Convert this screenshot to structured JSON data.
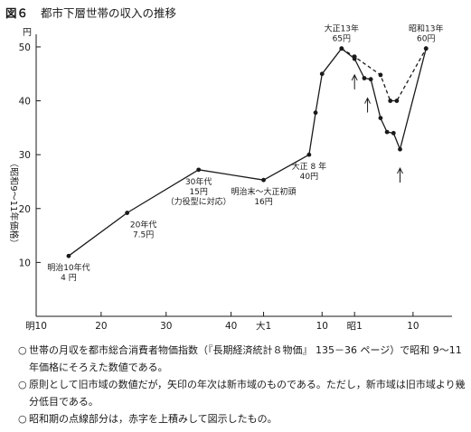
{
  "figure": {
    "number": "図６",
    "title": "都市下層世帯の収入の推移"
  },
  "chart_data": {
    "type": "line",
    "title": "都市下層世帯の収入の推移",
    "unit": "円",
    "ylabel": "（昭和9〜11年価格）",
    "ylim": [
      0,
      52
    ],
    "yticks": [
      10,
      20,
      30,
      40,
      50
    ],
    "xticks": [
      {
        "label": "明10",
        "x": 1877
      },
      {
        "label": "20",
        "x": 1887
      },
      {
        "label": "30",
        "x": 1897
      },
      {
        "label": "40",
        "x": 1907
      },
      {
        "label": "大1",
        "x": 1912
      },
      {
        "label": "10",
        "x": 1921
      },
      {
        "label": "昭1",
        "x": 1926
      },
      {
        "label": "10",
        "x": 1935
      }
    ],
    "xlim": [
      1877,
      1941
    ],
    "grid": false,
    "series": [
      {
        "style": "solid",
        "points": [
          {
            "x": 1882,
            "y": 11.2
          },
          {
            "x": 1891,
            "y": 19.2
          },
          {
            "x": 1902,
            "y": 27.2
          },
          {
            "x": 1912,
            "y": 25.3
          },
          {
            "x": 1919,
            "y": 30.0
          },
          {
            "x": 1920,
            "y": 37.8
          },
          {
            "x": 1921,
            "y": 45.0
          },
          {
            "x": 1924,
            "y": 49.7
          },
          {
            "x": 1926,
            "y": 47.8
          },
          {
            "x": 1927.5,
            "y": 44.2
          },
          {
            "x": 1928.5,
            "y": 44.0
          },
          {
            "x": 1930,
            "y": 36.8
          },
          {
            "x": 1931,
            "y": 34.2
          },
          {
            "x": 1932,
            "y": 34.0
          },
          {
            "x": 1933,
            "y": 31.0
          },
          {
            "x": 1937,
            "y": 49.7
          }
        ]
      },
      {
        "style": "dashed",
        "points": [
          {
            "x": 1924,
            "y": 49.7
          },
          {
            "x": 1926,
            "y": 48.2
          },
          {
            "x": 1930,
            "y": 44.8
          },
          {
            "x": 1931.5,
            "y": 40.0
          },
          {
            "x": 1932.5,
            "y": 40.0
          },
          {
            "x": 1937,
            "y": 49.7
          }
        ]
      }
    ],
    "arrows": [
      {
        "x": 1926,
        "y": 44.8
      },
      {
        "x": 1928,
        "y": 40.5
      },
      {
        "x": 1933,
        "y": 27.5
      }
    ],
    "annotations": [
      {
        "lines": [
          "明治10年代",
          "4 円"
        ],
        "x": 1882,
        "y": 11.2,
        "pos": "below"
      },
      {
        "lines": [
          "20年代",
          "7.5円"
        ],
        "x": 1891,
        "y": 19.2,
        "pos": "below-right"
      },
      {
        "lines": [
          "30年代",
          "15円",
          "（力役型に対応）"
        ],
        "x": 1902,
        "y": 27.2,
        "pos": "below"
      },
      {
        "lines": [
          "明治末〜大正初頭",
          "16円"
        ],
        "x": 1912,
        "y": 25.3,
        "pos": "below"
      },
      {
        "lines": [
          "大正 8 年",
          "40円"
        ],
        "x": 1919,
        "y": 30.0,
        "pos": "below"
      },
      {
        "lines": [
          "大正13年",
          "65円"
        ],
        "x": 1924,
        "y": 49.7,
        "pos": "above"
      },
      {
        "lines": [
          "昭和13年",
          "60円"
        ],
        "x": 1937,
        "y": 49.7,
        "pos": "above"
      }
    ]
  },
  "notes": [
    {
      "bullet": "○",
      "text": "世帯の月収を都市総合消費者物価指数（『長期経済統計８物価』 135－36 ページ）で昭和 9～11年価格にそろえた数値である。"
    },
    {
      "bullet": "○",
      "text": "原則として旧市域の数値だが，矢印の年次は新市域のものである。ただし，新市域は旧市域より幾分低目である。"
    },
    {
      "bullet": "○",
      "text": "昭和期の点線部分は，赤字を上積みして図示したもの。"
    }
  ]
}
